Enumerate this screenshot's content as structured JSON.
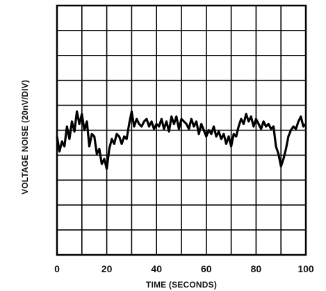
{
  "chart_data": {
    "type": "line",
    "title": "",
    "xlabel": "TIME (SECONDS)",
    "ylabel": "VOLTAGE NOISE (20nV/DIV)",
    "xlim": [
      0,
      100
    ],
    "ylim": [
      -100,
      100
    ],
    "x_ticks": [
      0,
      20,
      40,
      60,
      80,
      100
    ],
    "x_tick_labels": [
      "0",
      "20",
      "40",
      "60",
      "80",
      "100"
    ],
    "x_divisions": 10,
    "y_divisions": 10,
    "grid": true,
    "legend": "none",
    "colors": {
      "trace": "#000000",
      "grid": "#000000",
      "background": "#ffffff"
    },
    "series": [
      {
        "x": [
          0,
          1,
          2,
          3,
          4,
          5,
          6,
          7,
          8,
          9,
          10,
          11,
          12,
          13,
          14,
          15,
          16,
          17,
          18,
          19,
          20,
          21,
          22,
          23,
          24,
          25,
          26,
          27,
          28,
          29,
          30,
          31,
          32,
          33,
          34,
          35,
          36,
          37,
          38,
          39,
          40,
          41,
          42,
          43,
          44,
          45,
          46,
          47,
          48,
          49,
          50,
          51,
          52,
          53,
          54,
          55,
          56,
          57,
          58,
          59,
          60,
          61,
          62,
          63,
          64,
          65,
          66,
          67,
          68,
          69,
          70,
          71,
          72,
          73,
          74,
          75,
          76,
          77,
          78,
          79,
          80,
          81,
          82,
          83,
          84,
          85,
          86,
          87,
          88,
          89,
          90,
          91,
          92,
          93,
          94,
          95,
          96,
          97,
          98,
          99,
          100
        ],
        "values": [
          -5,
          -17,
          -9,
          -13,
          3,
          -7,
          7,
          -1,
          15,
          5,
          13,
          0,
          7,
          -13,
          -3,
          -5,
          -19,
          -15,
          -27,
          -23,
          -31,
          -15,
          -7,
          -11,
          -3,
          -5,
          -11,
          -5,
          -7,
          5,
          15,
          3,
          9,
          5,
          3,
          7,
          9,
          3,
          7,
          1,
          5,
          3,
          9,
          1,
          7,
          -1,
          11,
          5,
          11,
          1,
          9,
          7,
          5,
          1,
          9,
          3,
          7,
          -3,
          5,
          0,
          -5,
          0,
          -3,
          3,
          -5,
          -1,
          -7,
          -3,
          -11,
          -5,
          -13,
          -3,
          -5,
          3,
          9,
          5,
          13,
          7,
          11,
          3,
          9,
          5,
          1,
          7,
          3,
          5,
          1,
          3,
          -13,
          -19,
          -29,
          -23,
          -15,
          -5,
          0,
          3,
          1,
          7,
          11,
          3,
          5
        ]
      }
    ]
  }
}
